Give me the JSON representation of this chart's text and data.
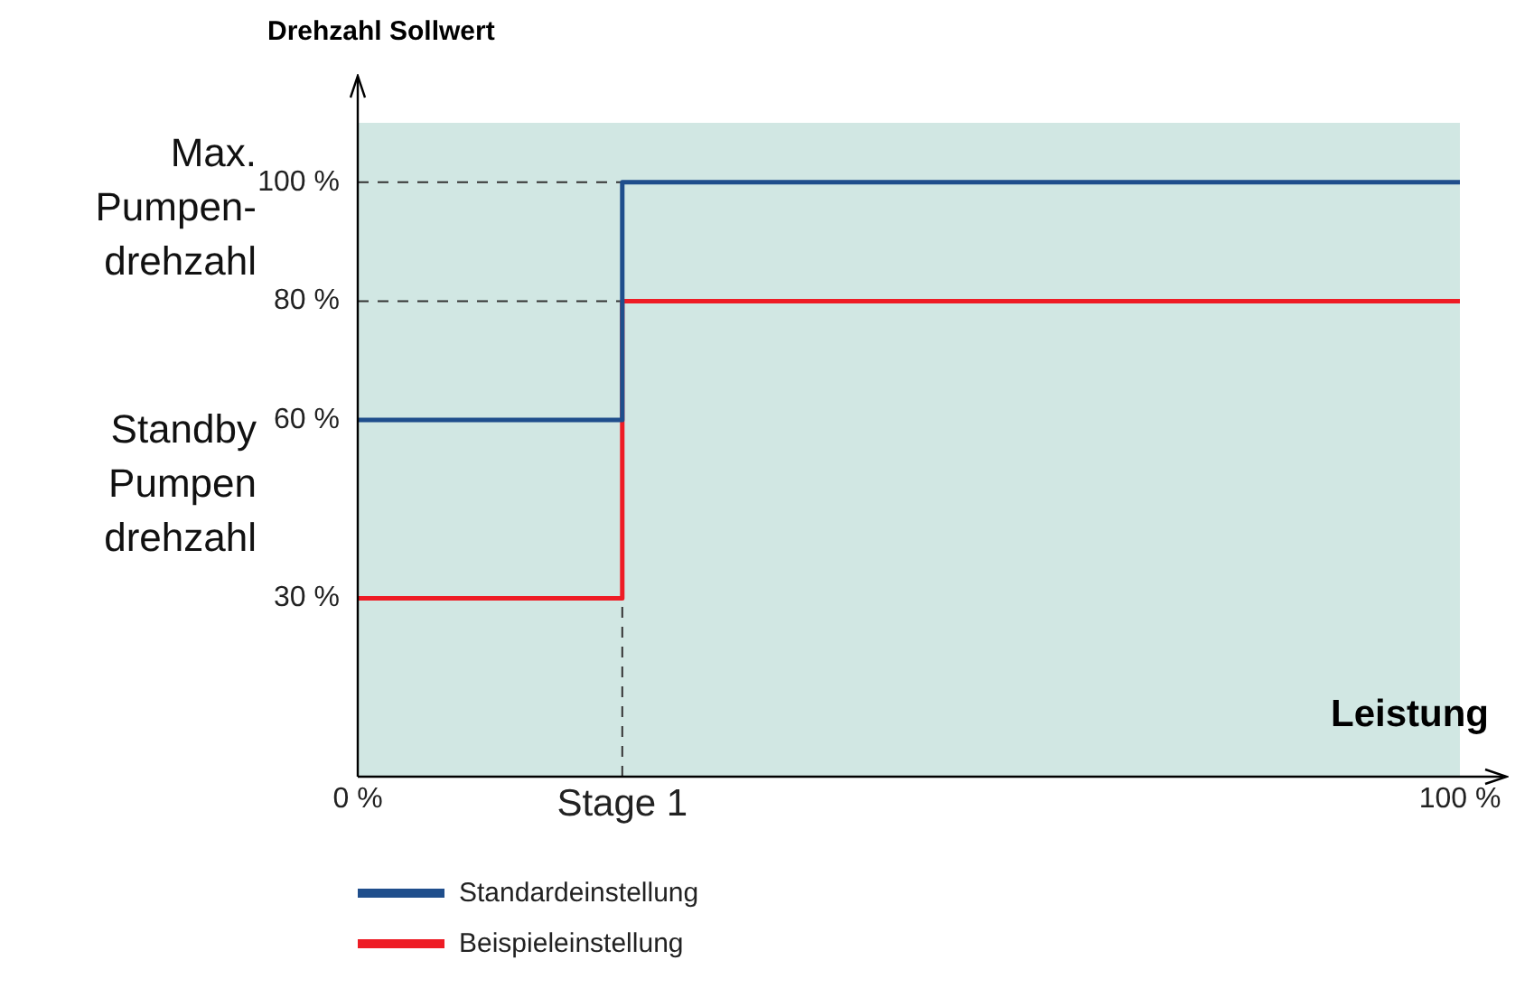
{
  "chart_data": {
    "type": "step",
    "ylabel": "Drehzahl Sollwert",
    "xlabel": "Leistung",
    "x": [
      0,
      24,
      100
    ],
    "series": [
      {
        "name": "Standardeinstellung",
        "color": "#1f4e8c",
        "values": [
          60,
          100,
          100
        ]
      },
      {
        "name": "Beispieleinstellung",
        "color": "#ee1c25",
        "values": [
          30,
          80,
          80
        ]
      }
    ],
    "xlim": [
      0,
      100
    ],
    "xticks": [
      {
        "value": 0,
        "label": "0 %"
      },
      {
        "value": 24,
        "label": "Stage 1"
      },
      {
        "value": 100,
        "label": "100 %"
      }
    ],
    "ylim": [
      0,
      110
    ],
    "yticks": [
      {
        "value": 30,
        "label": "30 %"
      },
      {
        "value": 60,
        "label": "60 %"
      },
      {
        "value": 80,
        "label": "80 %"
      },
      {
        "value": 100,
        "label": "100 %"
      }
    ],
    "ref_lines": [
      {
        "axis": "y",
        "value": 100,
        "line_style": "dashed"
      },
      {
        "axis": "y",
        "value": 80,
        "line_style": "dashed"
      },
      {
        "axis": "x",
        "value": 24,
        "line_style": "dashed"
      }
    ],
    "annotations": [
      "Max.\nPumpen-\ndrehzahl",
      "Standby\nPumpen\ndrehzahl"
    ],
    "grid": false,
    "legend": "bottom"
  }
}
